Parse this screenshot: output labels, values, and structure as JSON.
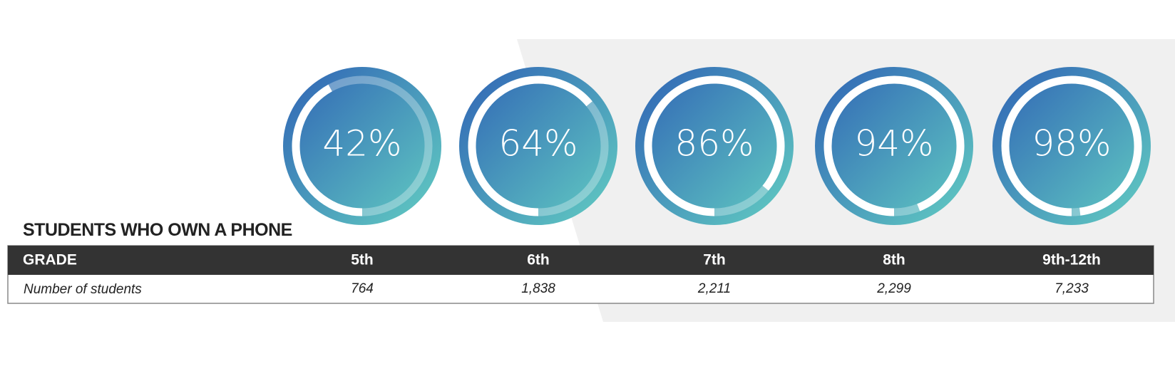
{
  "chart_data": {
    "type": "donut",
    "title": "STUDENTS WHO OWN A PHONE",
    "categories": [
      "5th",
      "6th",
      "7th",
      "8th",
      "9th-12th"
    ],
    "values": [
      42,
      64,
      86,
      94,
      98
    ],
    "value_labels": [
      "42%",
      "64%",
      "86%",
      "94%",
      "98%"
    ],
    "colors": [
      "#2f62b5",
      "#63cfc2"
    ],
    "table": {
      "header": "GRADE",
      "row_label": "Number of students",
      "counts": [
        "764",
        "1,838",
        "2,211",
        "2,299",
        "7,233"
      ]
    }
  }
}
